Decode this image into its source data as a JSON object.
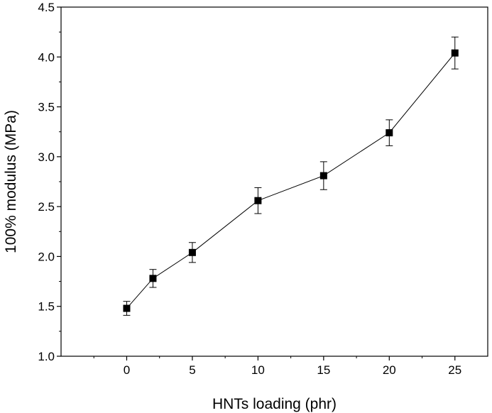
{
  "chart_data": {
    "type": "line",
    "title": "",
    "xlabel": "HNTs loading (phr)",
    "ylabel": "100% modulus (MPa)",
    "xlim": [
      -5,
      27.5
    ],
    "ylim": [
      1.0,
      4.5
    ],
    "xticks": [
      0,
      5,
      10,
      15,
      20,
      25
    ],
    "xtick_labels": [
      "0",
      "5",
      "10",
      "15",
      "20",
      "25"
    ],
    "yticks": [
      1.0,
      1.5,
      2.0,
      2.5,
      3.0,
      3.5,
      4.0,
      4.5
    ],
    "ytick_labels": [
      "1.0",
      "1.5",
      "2.0",
      "2.5",
      "3.0",
      "3.5",
      "4.0",
      "4.5"
    ],
    "grid": false,
    "legend": "none",
    "marker": "filled-square",
    "line_color": "#000000",
    "series": [
      {
        "x": [
          0,
          2,
          5,
          10,
          15,
          20,
          25
        ],
        "y": [
          1.48,
          1.78,
          2.04,
          2.56,
          2.81,
          3.24,
          4.04
        ],
        "error": [
          0.07,
          0.09,
          0.1,
          0.13,
          0.14,
          0.13,
          0.16
        ]
      }
    ]
  }
}
